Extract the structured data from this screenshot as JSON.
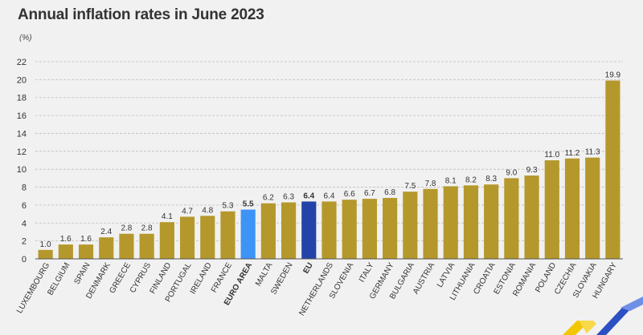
{
  "header": {
    "title": "Annual inflation rates in June 2023",
    "unit": "(%)"
  },
  "colors": {
    "bar_default": "#b5982b",
    "bar_euro_area": "#3d94f6",
    "bar_eu": "#2343a8",
    "grid": "#bdbdbd",
    "text": "#333333",
    "background": "#f1f1f1"
  },
  "chart_data": {
    "type": "bar",
    "title": "Annual inflation rates in June 2023",
    "ylabel": "(%)",
    "xlabel": "",
    "ylim": [
      0,
      22
    ],
    "yticks": [
      0,
      2,
      4,
      6,
      8,
      10,
      12,
      14,
      16,
      18,
      20,
      22
    ],
    "grid": true,
    "categories": [
      "LUXEMBOURG",
      "BELGIUM",
      "SPAIN",
      "DENMARK",
      "GREECE",
      "CYPRUS",
      "FINLAND",
      "PORTUGAL",
      "IRELAND",
      "FRANCE",
      "EURO AREA",
      "MALTA",
      "SWEDEN",
      "EU",
      "NETHERLANDS",
      "SLOVENIA",
      "ITALY",
      "GERMANY",
      "BULGARIA",
      "AUSTRIA",
      "LATVIA",
      "LITHUANIA",
      "CROATIA",
      "ESTONIA",
      "ROMANIA",
      "POLAND",
      "CZECHIA",
      "SLOVAKIA",
      "HUNGARY"
    ],
    "values": [
      1.0,
      1.6,
      1.6,
      2.4,
      2.8,
      2.8,
      4.1,
      4.7,
      4.8,
      5.3,
      5.5,
      6.2,
      6.3,
      6.4,
      6.4,
      6.6,
      6.7,
      6.8,
      7.5,
      7.8,
      8.1,
      8.2,
      8.3,
      9.0,
      9.3,
      11.0,
      11.2,
      11.3,
      19.9
    ],
    "value_labels": [
      "1.0",
      "1.6",
      "1.6",
      "2.4",
      "2.8",
      "2.8",
      "4.1",
      "4.7",
      "4.8",
      "5.3",
      "5.5",
      "6.2",
      "6.3",
      "6.4",
      "6.4",
      "6.6",
      "6.7",
      "6.8",
      "7.5",
      "7.8",
      "8.1",
      "8.2",
      "8.3",
      "9.0",
      "9.3",
      "11.0",
      "11.2",
      "11.3",
      "19.9"
    ],
    "highlight": {
      "EURO AREA": "euro_area",
      "EU": "eu"
    }
  }
}
